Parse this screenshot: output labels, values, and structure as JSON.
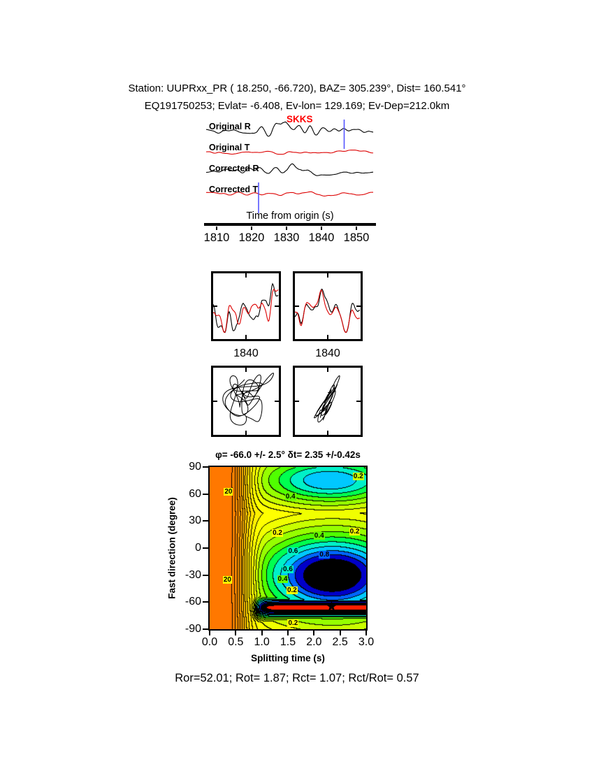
{
  "header": {
    "line1": "Station: UUPRxx_PR (  18.250,  -66.720), BAZ=  305.239°, Dist=  160.541°",
    "line2": "EQ191750253; Evlat=  -6.408, Ev-lon= 129.169; Ev-Dep=212.0km"
  },
  "footer": {
    "stats": "Ror=52.01; Rot= 1.87; Rct= 1.07; Rct/Rot= 0.57"
  },
  "chart_data": [
    {
      "id": "seismograms",
      "type": "line",
      "xlabel": "Time from origin (s)",
      "x_range": [
        1807,
        1855
      ],
      "x_ticks": [
        "1810",
        "1820",
        "1830",
        "1840",
        "1850"
      ],
      "phase_label": {
        "text": "SKKS",
        "color": "#ff0000",
        "time": 1829
      },
      "window_markers": {
        "color": "#5555ff",
        "items": [
          {
            "time": 1822,
            "extent": "lower"
          },
          {
            "time": 1846.5,
            "extent": "upper"
          }
        ]
      },
      "traces": [
        {
          "label": "Original R",
          "color": "#000000",
          "seed": 11,
          "amp": 15,
          "envelope": true
        },
        {
          "label": "Original T",
          "color": "#dd0000",
          "seed": 22,
          "amp": 6,
          "envelope": false
        },
        {
          "label": "Corrected R",
          "color": "#000000",
          "seed": 33,
          "amp": 15,
          "envelope": true
        },
        {
          "label": "Corrected T",
          "color": "#dd0000",
          "seed": 44,
          "amp": 4,
          "envelope": false
        }
      ]
    },
    {
      "id": "waveform-windows",
      "type": "line",
      "colors": [
        "#000000",
        "#dd0000"
      ],
      "panels": [
        {
          "tick_label": "1840",
          "seed": 55
        },
        {
          "tick_label": "1840",
          "seed": 66
        }
      ]
    },
    {
      "id": "particle-motion",
      "type": "line",
      "panels": [
        {
          "seed": 77,
          "elongated": false
        },
        {
          "seed": 88,
          "elongated": true
        }
      ]
    },
    {
      "id": "splitting-misfit",
      "type": "heatmap",
      "title": "φ= -66.0 +/- 2.5°  δt= 2.35 +/-0.42s",
      "xlabel": "Splitting time (s)",
      "ylabel": "Fast direction (degree)",
      "x_range": [
        0,
        3
      ],
      "y_range": [
        -90,
        90
      ],
      "x_ticks": [
        "0.0",
        "0.5",
        "1.0",
        "1.5",
        "2.0",
        "2.5",
        "3.0"
      ],
      "y_ticks": [
        "90",
        "60",
        "30",
        "0",
        "-30",
        "-60",
        "-90"
      ],
      "best_fit": {
        "phi_deg": -66.0,
        "phi_err_deg": 2.5,
        "dt_s": 2.35,
        "dt_err_s": 0.42
      },
      "star": {
        "x": 2.35,
        "y": -66
      },
      "palette": {
        "levels": [
          0.07,
          0.12,
          0.18,
          0.24,
          0.3,
          0.38,
          0.48,
          0.6,
          0.75,
          0.95,
          1.2,
          1.5,
          2.0,
          2.6,
          3.4,
          4.4,
          5.6,
          7.0,
          9.0,
          11.5,
          15,
          20
        ],
        "colors": [
          "#ff1e00",
          "#000000",
          "#000000",
          "#0000c8",
          "#0064ff",
          "#00c8ff",
          "#00f0c8",
          "#00ff50",
          "#50ff00",
          "#96ff00",
          "#c8ff00",
          "#f0ff00",
          "#ffff00",
          "#fff000",
          "#ffe100",
          "#ffd200",
          "#ffc300",
          "#ffb400",
          "#ffa500",
          "#ff9600",
          "#ff8c00",
          "#ff8200",
          "#ff7800"
        ]
      },
      "contour_labels": [
        {
          "text": "20",
          "x": 0.38,
          "y": 62,
          "bg": "#ffff00"
        },
        {
          "text": "20",
          "x": 0.36,
          "y": -36,
          "bg": "#ffff00"
        },
        {
          "text": "0.4",
          "x": 1.55,
          "y": 57,
          "bg": "#64ff00"
        },
        {
          "text": "0.2",
          "x": 2.85,
          "y": 79,
          "bg": "#c8ff00"
        },
        {
          "text": "0.2",
          "x": 1.3,
          "y": 16,
          "bg": "#ffff00"
        },
        {
          "text": "0.4",
          "x": 2.1,
          "y": 13,
          "bg": "#64ff00"
        },
        {
          "text": "0.2",
          "x": 2.78,
          "y": 18,
          "bg": "#ffff00"
        },
        {
          "text": "0.6",
          "x": 1.6,
          "y": -4,
          "bg": "#00f0c8"
        },
        {
          "text": "0.8",
          "x": 2.2,
          "y": -8,
          "bg": "#0064ff"
        },
        {
          "text": "0.6",
          "x": 1.5,
          "y": -24,
          "bg": "#00f0c8"
        },
        {
          "text": "0.4",
          "x": 1.4,
          "y": -35,
          "bg": "#64ff00"
        },
        {
          "text": "0.2",
          "x": 1.58,
          "y": -47,
          "bg": "#ffff00"
        },
        {
          "text": "0.2",
          "x": 1.6,
          "y": -84,
          "bg": "#ffff00"
        }
      ]
    }
  ]
}
